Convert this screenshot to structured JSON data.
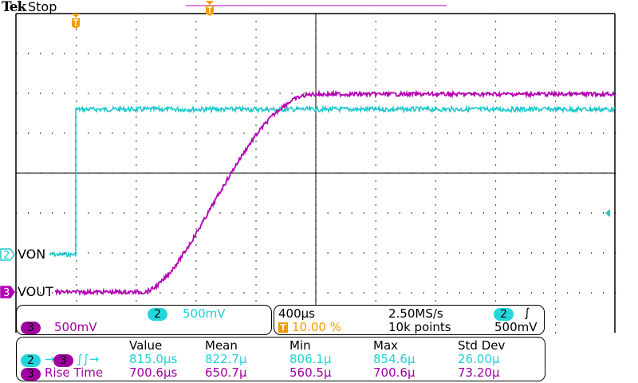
{
  "header": {
    "brand": "Tek",
    "acq_state": "Stop"
  },
  "colors": {
    "ch2": "#1ec8cc",
    "ch3": "#b400b4",
    "trigger": "#f59a00",
    "grid": "#000000"
  },
  "channels": [
    {
      "number": "2",
      "label": "VON",
      "scale": "500mV"
    },
    {
      "number": "3",
      "label": "VOUT",
      "scale": "500mV"
    }
  ],
  "timebase": {
    "scale": "400µs",
    "trigger_position": "10.00 %",
    "sample_rate": "2.50MS/s",
    "record_length": "10k points",
    "trigger_source": "2",
    "trigger_slope_icon": "rising-edge-icon",
    "trigger_level": "500mV"
  },
  "measurements": {
    "headers": [
      "Value",
      "Mean",
      "Min",
      "Max",
      "Std Dev"
    ],
    "rows": [
      {
        "source": "2",
        "target": "3",
        "name_icon": "delay-rising-rising-icon",
        "values": [
          "815.0µs",
          "822.7µ",
          "806.1µ",
          "854.6µ",
          "26.00µ"
        ]
      },
      {
        "source": "3",
        "name": "Rise Time",
        "values": [
          "700.6µs",
          "650.7µ",
          "560.5µ",
          "700.6µ",
          "73.20µ"
        ]
      }
    ]
  },
  "trigger_marker": "T"
}
